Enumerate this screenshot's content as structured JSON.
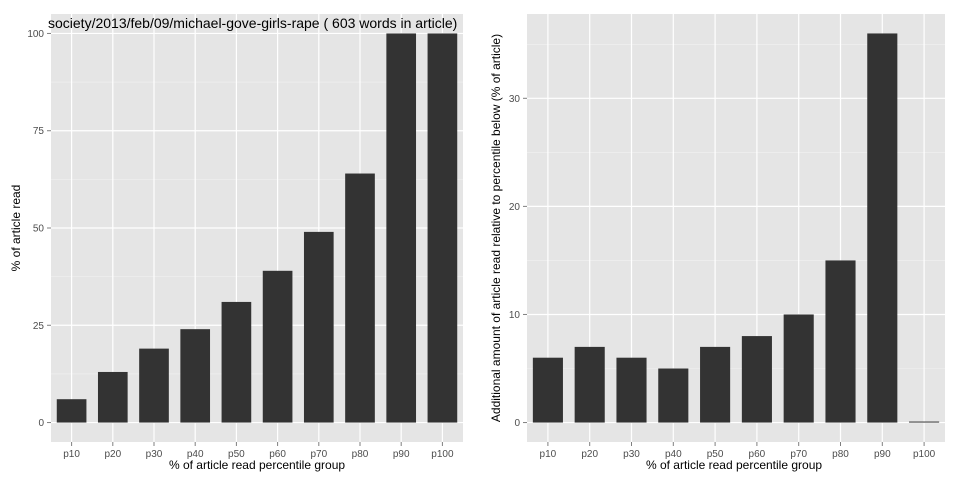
{
  "chart_data": [
    {
      "type": "bar",
      "title": "society/2013/feb/09/michael-gove-girls-rape ( 603 words in article)",
      "xlabel": "% of article read percentile group",
      "ylabel": "% of article read",
      "categories": [
        "p10",
        "p20",
        "p30",
        "p40",
        "p50",
        "p60",
        "p70",
        "p80",
        "p90",
        "p100"
      ],
      "values": [
        6,
        13,
        19,
        24,
        31,
        39,
        49,
        64,
        100,
        100
      ],
      "yticks": [
        0,
        25,
        50,
        75,
        100
      ],
      "ylim": [
        -5,
        105
      ],
      "grid": true,
      "colors": {
        "bar": "#333333",
        "panel": "#e5e5e5",
        "grid": "#ffffff"
      }
    },
    {
      "type": "bar",
      "title": "",
      "xlabel": "% of article read percentile group",
      "ylabel": "Additional amount of article read relative to percentile below (% of article)",
      "categories": [
        "p10",
        "p20",
        "p30",
        "p40",
        "p50",
        "p60",
        "p70",
        "p80",
        "p90",
        "p100"
      ],
      "values": [
        6,
        7,
        6,
        5,
        7,
        8,
        10,
        15,
        36,
        0
      ],
      "yticks": [
        0,
        10,
        20,
        30
      ],
      "ylim": [
        -1.8,
        37.8
      ],
      "grid": true,
      "colors": {
        "bar": "#333333",
        "panel": "#e5e5e5",
        "grid": "#ffffff"
      }
    }
  ]
}
